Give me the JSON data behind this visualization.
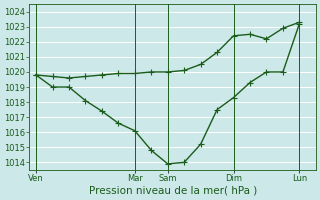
{
  "xlabel": "Pression niveau de la mer( hPa )",
  "bg_color": "#cce8e8",
  "grid_color": "#aad4d4",
  "line_color": "#1a5c1a",
  "ylim": [
    1013.5,
    1024.5
  ],
  "yticks": [
    1014,
    1015,
    1016,
    1017,
    1018,
    1019,
    1020,
    1021,
    1022,
    1023,
    1024
  ],
  "xtick_labels": [
    "Ven",
    "Mar",
    "Sam",
    "Dim",
    "Lun"
  ],
  "xtick_positions": [
    0,
    3,
    4,
    6,
    8
  ],
  "vline_positions": [
    0,
    3,
    4,
    6,
    8
  ],
  "xlim": [
    -0.2,
    8.5
  ],
  "line1_x": [
    0,
    0.5,
    1,
    1.5,
    2,
    2.5,
    3,
    3.5,
    4,
    4.5,
    5,
    5.5,
    6,
    6.5,
    7,
    7.5,
    8
  ],
  "line1_y": [
    1019.8,
    1019.7,
    1019.6,
    1019.7,
    1019.8,
    1019.9,
    1019.9,
    1020.0,
    1020.0,
    1020.1,
    1020.5,
    1021.3,
    1022.4,
    1022.5,
    1022.2,
    1022.9,
    1023.3
  ],
  "line2_x": [
    0,
    0.5,
    1,
    1.5,
    2,
    2.5,
    3,
    3.5,
    4,
    4.5,
    5,
    5.5,
    6,
    6.5,
    7,
    7.5,
    8
  ],
  "line2_y": [
    1019.8,
    1019.0,
    1019.0,
    1018.1,
    1017.4,
    1016.6,
    1016.1,
    1014.8,
    1013.9,
    1014.0,
    1015.2,
    1017.5,
    1018.3,
    1019.3,
    1020.0,
    1020.0,
    1023.2
  ],
  "marker": "+",
  "marker_size": 4,
  "linewidth": 1.0,
  "tick_label_fontsize": 6.0,
  "xlabel_fontsize": 7.5
}
